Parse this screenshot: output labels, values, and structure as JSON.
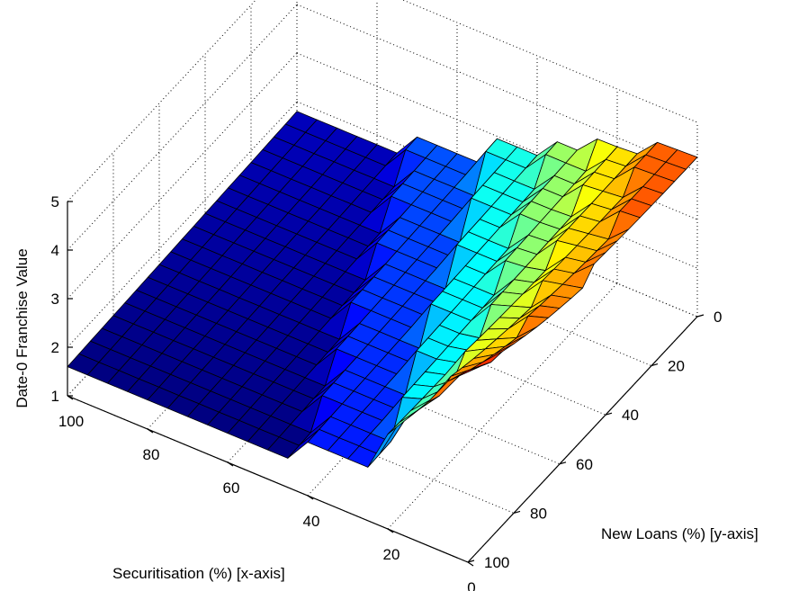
{
  "chart_data": {
    "type": "surface3d",
    "colormap": "jet",
    "shading": "faceted",
    "grid": true,
    "xlabel": "Securitisation (%) [x-axis]",
    "ylabel": "New Loans (%) [y-axis]",
    "zlabel": "Date-0 Franchise Value",
    "xlim": [
      0,
      100
    ],
    "ylim": [
      0,
      100
    ],
    "zlim": [
      1,
      5
    ],
    "x_ticks": [
      "0",
      "20",
      "40",
      "60",
      "80",
      "100"
    ],
    "y_ticks": [
      "0",
      "20",
      "40",
      "60",
      "80",
      "100"
    ],
    "z_ticks": [
      "1",
      "2",
      "3",
      "4",
      "5"
    ],
    "x": [
      0,
      5,
      10,
      15,
      20,
      25,
      30,
      35,
      40,
      45,
      50,
      55,
      60,
      65,
      70,
      75,
      80,
      85,
      90,
      95,
      100
    ],
    "y": [
      0,
      5,
      10,
      15,
      20,
      25,
      30,
      35,
      40,
      45,
      50,
      55,
      60,
      65,
      70,
      75,
      80,
      85,
      90,
      95,
      100
    ],
    "surface_model": {
      "description": "stepped franchise value surface; each level applies where (x + 0.3*y) < threshold, base value where none apply",
      "base": 1.6,
      "levels": [
        {
          "threshold": 72,
          "value": 2.1
        },
        {
          "threshold": 52,
          "value": 2.75
        },
        {
          "threshold": 38,
          "value": 3.2
        },
        {
          "threshold": 26,
          "value": 3.6
        },
        {
          "threshold": 14,
          "value": 4.0
        }
      ],
      "y_slope_per_pct": 0.002,
      "peak": {
        "x": 0,
        "y": 100,
        "value": 4.95,
        "reach": 22,
        "y_decay": 0.022
      }
    }
  }
}
